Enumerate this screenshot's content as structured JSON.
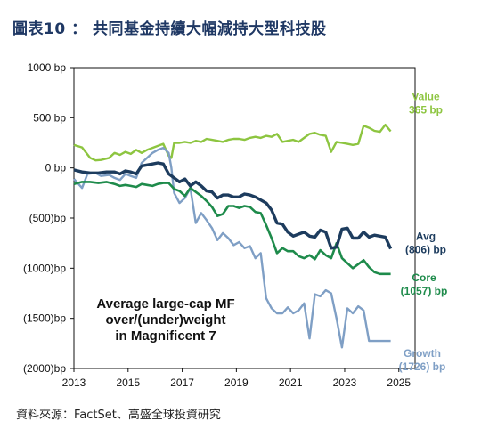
{
  "header": {
    "title": "圖表10 ： 共同基金持續大幅減持大型科技股"
  },
  "footer": {
    "source": "資料來源：FactSet、高盛全球投資研究"
  },
  "chart_data": {
    "type": "line",
    "title": "",
    "xlabel": "",
    "ylabel": "",
    "xlim": [
      2013,
      2025.6
    ],
    "ylim": [
      -2000,
      1000
    ],
    "x_ticks": [
      "2013",
      "2015",
      "2017",
      "2019",
      "2021",
      "2023",
      "2025"
    ],
    "y_ticks": [
      "1000 bp",
      "500 bp",
      "0 bp",
      "(500)bp",
      "(1000)bp",
      "(1500)bp",
      "(2000)bp"
    ],
    "grid": false,
    "annotation": [
      "Average large-cap MF",
      "over/(under)weight",
      "in Magnificent 7"
    ],
    "series": [
      {
        "key": "value",
        "color": "#8dc540",
        "label_lines": [
          "Value",
          "365 bp"
        ],
        "x": [
          2013.0,
          2013.3,
          2013.6,
          2013.8,
          2014.0,
          2014.3,
          2014.5,
          2014.7,
          2014.9,
          2015.1,
          2015.3,
          2015.5,
          2015.7,
          2015.9,
          2016.1,
          2016.3,
          2016.5,
          2016.6,
          2016.7,
          2016.9,
          2017.1,
          2017.3,
          2017.5,
          2017.7,
          2017.9,
          2018.1,
          2018.3,
          2018.5,
          2018.7,
          2018.9,
          2019.1,
          2019.3,
          2019.5,
          2019.7,
          2019.9,
          2020.1,
          2020.3,
          2020.5,
          2020.7,
          2020.9,
          2021.1,
          2021.3,
          2021.5,
          2021.7,
          2021.9,
          2022.1,
          2022.3,
          2022.5,
          2022.7,
          2022.9,
          2023.1,
          2023.3,
          2023.5,
          2023.7,
          2023.9,
          2024.1,
          2024.3,
          2024.5,
          2024.7
        ],
        "values": [
          230,
          205,
          100,
          75,
          80,
          100,
          150,
          130,
          160,
          140,
          180,
          150,
          180,
          200,
          220,
          240,
          120,
          100,
          250,
          250,
          260,
          250,
          270,
          260,
          290,
          280,
          270,
          260,
          280,
          290,
          290,
          280,
          300,
          310,
          300,
          320,
          310,
          340,
          260,
          270,
          280,
          260,
          300,
          340,
          350,
          330,
          320,
          160,
          260,
          250,
          240,
          230,
          240,
          420,
          400,
          370,
          360,
          430,
          365
        ]
      },
      {
        "key": "growth",
        "color": "#7f9fc5",
        "label_lines": [
          "Growth",
          "(1726) bp"
        ],
        "x": [
          2013.0,
          2013.3,
          2013.5,
          2013.8,
          2014.0,
          2014.3,
          2014.5,
          2014.7,
          2014.9,
          2015.1,
          2015.3,
          2015.5,
          2015.7,
          2015.9,
          2016.1,
          2016.3,
          2016.5,
          2016.6,
          2016.7,
          2016.9,
          2017.1,
          2017.3,
          2017.5,
          2017.7,
          2017.9,
          2018.1,
          2018.3,
          2018.5,
          2018.7,
          2018.9,
          2019.1,
          2019.3,
          2019.5,
          2019.7,
          2019.9,
          2020.1,
          2020.3,
          2020.5,
          2020.7,
          2020.9,
          2021.1,
          2021.3,
          2021.5,
          2021.7,
          2021.9,
          2022.1,
          2022.3,
          2022.5,
          2022.7,
          2022.9,
          2023.1,
          2023.3,
          2023.5,
          2023.7,
          2023.9,
          2024.1,
          2024.3,
          2024.5,
          2024.7
        ],
        "values": [
          -110,
          -200,
          -60,
          -50,
          -80,
          -70,
          -100,
          -120,
          -60,
          -80,
          -100,
          50,
          100,
          150,
          180,
          200,
          150,
          0,
          -250,
          -350,
          -300,
          -200,
          -550,
          -450,
          -520,
          -600,
          -720,
          -650,
          -700,
          -770,
          -740,
          -800,
          -780,
          -900,
          -850,
          -1300,
          -1400,
          -1450,
          -1450,
          -1390,
          -1450,
          -1420,
          -1350,
          -1700,
          -1260,
          -1280,
          -1220,
          -1250,
          -1500,
          -1790,
          -1400,
          -1450,
          -1380,
          -1420,
          -1726,
          -1726,
          -1726,
          -1726,
          -1726
        ]
      },
      {
        "key": "core",
        "color": "#1e8b4b",
        "label_lines": [
          "Core",
          "(1057) bp"
        ],
        "x": [
          2013.0,
          2013.3,
          2013.6,
          2013.9,
          2014.2,
          2014.5,
          2014.7,
          2014.9,
          2015.1,
          2015.3,
          2015.5,
          2015.7,
          2015.9,
          2016.1,
          2016.3,
          2016.5,
          2016.7,
          2016.9,
          2017.1,
          2017.3,
          2017.5,
          2017.7,
          2017.9,
          2018.1,
          2018.3,
          2018.5,
          2018.7,
          2018.9,
          2019.1,
          2019.3,
          2019.5,
          2019.7,
          2019.9,
          2020.1,
          2020.3,
          2020.5,
          2020.7,
          2020.9,
          2021.1,
          2021.3,
          2021.5,
          2021.7,
          2021.9,
          2022.1,
          2022.3,
          2022.5,
          2022.7,
          2022.9,
          2023.1,
          2023.3,
          2023.5,
          2023.7,
          2023.9,
          2024.1,
          2024.3,
          2024.5,
          2024.7
        ],
        "values": [
          -160,
          -140,
          -140,
          -150,
          -140,
          -160,
          -180,
          -170,
          -180,
          -190,
          -160,
          -170,
          -180,
          -160,
          -150,
          -150,
          -210,
          -230,
          -280,
          -200,
          -240,
          -280,
          -330,
          -390,
          -480,
          -460,
          -380,
          -380,
          -400,
          -380,
          -390,
          -440,
          -450,
          -570,
          -700,
          -850,
          -800,
          -830,
          -830,
          -880,
          -900,
          -870,
          -910,
          -820,
          -870,
          -900,
          -750,
          -900,
          -950,
          -1000,
          -960,
          -920,
          -990,
          -1040,
          -1057,
          -1057,
          -1057
        ]
      },
      {
        "key": "avg",
        "color": "#1d3c5e",
        "label_lines": [
          "Avg",
          "(806)  bp"
        ],
        "x": [
          2013.0,
          2013.3,
          2013.6,
          2013.9,
          2014.2,
          2014.5,
          2014.7,
          2014.9,
          2015.1,
          2015.3,
          2015.5,
          2015.7,
          2015.9,
          2016.1,
          2016.3,
          2016.5,
          2016.7,
          2016.9,
          2017.1,
          2017.3,
          2017.5,
          2017.7,
          2017.9,
          2018.1,
          2018.3,
          2018.5,
          2018.7,
          2018.9,
          2019.1,
          2019.3,
          2019.5,
          2019.7,
          2019.9,
          2020.1,
          2020.3,
          2020.5,
          2020.7,
          2020.9,
          2021.1,
          2021.3,
          2021.5,
          2021.7,
          2021.9,
          2022.1,
          2022.3,
          2022.5,
          2022.7,
          2022.9,
          2023.1,
          2023.3,
          2023.5,
          2023.7,
          2023.9,
          2024.1,
          2024.3,
          2024.5,
          2024.7
        ],
        "values": [
          -20,
          -40,
          -50,
          -50,
          -40,
          -40,
          -60,
          -30,
          -40,
          -60,
          20,
          30,
          40,
          50,
          40,
          -60,
          -100,
          -140,
          -110,
          -180,
          -140,
          -180,
          -230,
          -240,
          -300,
          -270,
          -270,
          -290,
          -290,
          -260,
          -270,
          -290,
          -320,
          -350,
          -420,
          -550,
          -560,
          -640,
          -680,
          -660,
          -640,
          -680,
          -690,
          -620,
          -640,
          -800,
          -790,
          -610,
          -600,
          -700,
          -700,
          -640,
          -690,
          -670,
          -680,
          -690,
          -806
        ]
      }
    ]
  }
}
